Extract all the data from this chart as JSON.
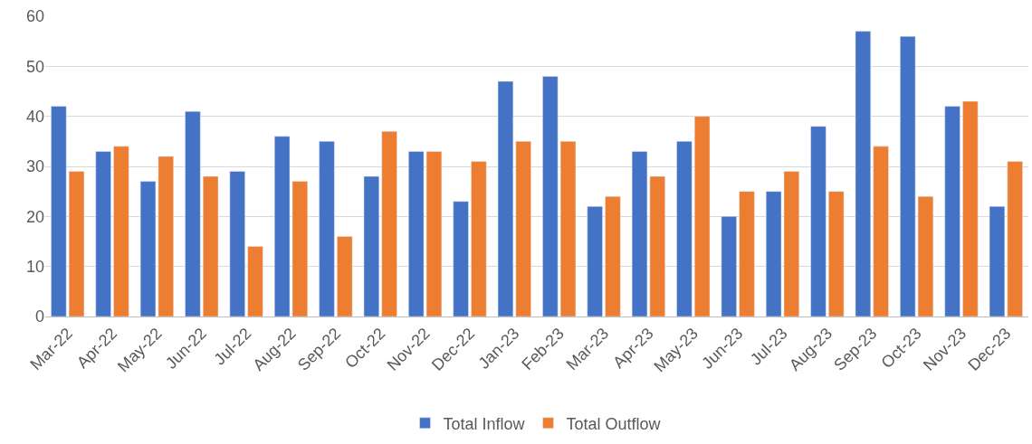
{
  "chart_data": {
    "type": "bar",
    "categories": [
      "Mar-22",
      "Apr-22",
      "May-22",
      "Jun-22",
      "Jul-22",
      "Aug-22",
      "Sep-22",
      "Oct-22",
      "Nov-22",
      "Dec-22",
      "Jan-23",
      "Feb-23",
      "Mar-23",
      "Apr-23",
      "May-23",
      "Jun-23",
      "Jul-23",
      "Aug-23",
      "Sep-23",
      "Oct-23",
      "Nov-23",
      "Dec-23"
    ],
    "series": [
      {
        "name": "Total Inflow",
        "color": "#4472c4",
        "values": [
          42,
          33,
          27,
          41,
          29,
          36,
          35,
          28,
          33,
          23,
          47,
          48,
          22,
          33,
          35,
          20,
          25,
          38,
          57,
          56,
          42,
          22
        ]
      },
      {
        "name": "Total Outflow",
        "color": "#ed7d31",
        "values": [
          29,
          34,
          32,
          28,
          14,
          27,
          16,
          37,
          33,
          31,
          35,
          35,
          24,
          28,
          40,
          25,
          29,
          25,
          34,
          24,
          43,
          31
        ]
      }
    ],
    "ylim": [
      0,
      60
    ],
    "yticks": [
      0,
      10,
      20,
      30,
      40,
      50,
      60
    ],
    "grid": "y",
    "legend": "bottom"
  }
}
